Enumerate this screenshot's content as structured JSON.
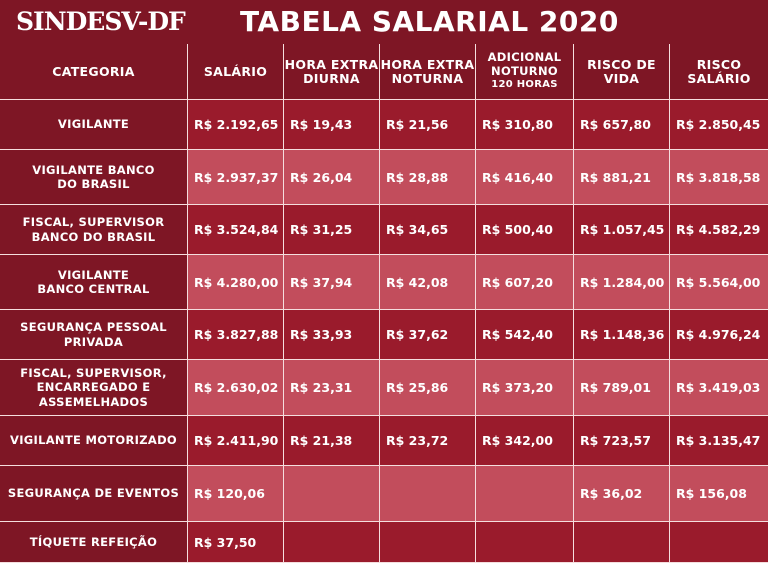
{
  "header": {
    "logo": "SINDESV-DF",
    "title": "TABELA SALARIAL 2020"
  },
  "columns": {
    "categoria": "CATEGORIA",
    "salario": "SALÁRIO",
    "hora_diurna_1": "HORA EXTRA",
    "hora_diurna_2": "DIURNA",
    "hora_noturna_1": "HORA EXTRA",
    "hora_noturna_2": "NOTURNA",
    "adicional_1": "ADICIONAL",
    "adicional_2": "NOTURNO",
    "adicional_3": "120 HORAS",
    "risco_vida_1": "RISCO DE",
    "risco_vida_2": "VIDA",
    "risco_salario_1": "RISCO",
    "risco_salario_2": "SALÁRIO"
  },
  "rows": [
    {
      "cat1": "VIGILANTE",
      "cat2": "",
      "cat3": "",
      "salario": "R$ 2.192,65",
      "hora_diurna": "R$ 19,43",
      "hora_noturna": "R$ 21,56",
      "adicional": "R$ 310,80",
      "risco_vida": "R$ 657,80",
      "risco_salario": "R$ 2.850,45"
    },
    {
      "cat1": "VIGILANTE BANCO",
      "cat2": "DO BRASIL",
      "cat3": "",
      "salario": "R$ 2.937,37",
      "hora_diurna": "R$ 26,04",
      "hora_noturna": "R$ 28,88",
      "adicional": "R$ 416,40",
      "risco_vida": "R$ 881,21",
      "risco_salario": "R$ 3.818,58"
    },
    {
      "cat1": "FISCAL, SUPERVISOR",
      "cat2": "BANCO DO BRASIL",
      "cat3": "",
      "salario": "R$ 3.524,84",
      "hora_diurna": "R$ 31,25",
      "hora_noturna": "R$ 34,65",
      "adicional": "R$ 500,40",
      "risco_vida": "R$ 1.057,45",
      "risco_salario": "R$ 4.582,29"
    },
    {
      "cat1": "VIGILANTE",
      "cat2": "BANCO CENTRAL",
      "cat3": "",
      "salario": "R$ 4.280,00",
      "hora_diurna": "R$ 37,94",
      "hora_noturna": "R$ 42,08",
      "adicional": "R$ 607,20",
      "risco_vida": "R$ 1.284,00",
      "risco_salario": "R$ 5.564,00"
    },
    {
      "cat1": "SEGURANÇA PESSOAL",
      "cat2": "PRIVADA",
      "cat3": "",
      "salario": "R$ 3.827,88",
      "hora_diurna": "R$ 33,93",
      "hora_noturna": "R$ 37,62",
      "adicional": "R$ 542,40",
      "risco_vida": "R$ 1.148,36",
      "risco_salario": "R$ 4.976,24"
    },
    {
      "cat1": "FISCAL, SUPERVISOR,",
      "cat2": "ENCARREGADO E",
      "cat3": "ASSEMELHADOS",
      "salario": "R$ 2.630,02",
      "hora_diurna": "R$ 23,31",
      "hora_noturna": "R$ 25,86",
      "adicional": "R$ 373,20",
      "risco_vida": "R$ 789,01",
      "risco_salario": "R$ 3.419,03"
    },
    {
      "cat1": "VIGILANTE MOTORIZADO",
      "cat2": "",
      "cat3": "",
      "salario": "R$ 2.411,90",
      "hora_diurna": "R$ 21,38",
      "hora_noturna": "R$ 23,72",
      "adicional": "R$ 342,00",
      "risco_vida": "R$ 723,57",
      "risco_salario": "R$ 3.135,47"
    },
    {
      "cat1": "SEGURANÇA DE EVENTOS",
      "cat2": "",
      "cat3": "",
      "salario": "R$ 120,06",
      "hora_diurna": "",
      "hora_noturna": "",
      "adicional": "",
      "risco_vida": "R$ 36,02",
      "risco_salario": "R$ 156,08"
    },
    {
      "cat1": "TÍQUETE REFEIÇÃO",
      "cat2": "",
      "cat3": "",
      "salario": "R$ 37,50",
      "hora_diurna": "",
      "hora_noturna": "",
      "adicional": "",
      "risco_vida": "",
      "risco_salario": ""
    }
  ],
  "colors": {
    "header_bg": "#7e1625",
    "cell_dark": "#9a1b2c",
    "cell_light": "#c24d5c",
    "grid_line": "#f5dede"
  }
}
